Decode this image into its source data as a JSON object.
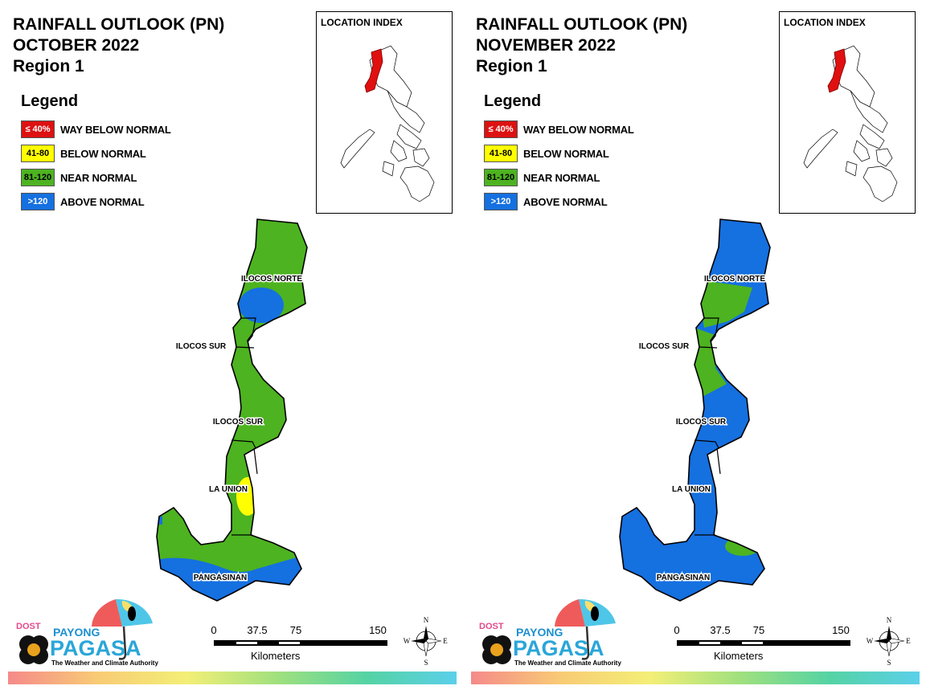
{
  "panels": [
    {
      "title_line1": "RAINFALL OUTLOOK (PN)",
      "title_line2": "OCTOBER 2022",
      "title_line3": "Region 1",
      "legend_title": "Legend",
      "legend": [
        {
          "swatch": "≤ 40%",
          "label": "WAY BELOW NORMAL",
          "color": "#dd1111",
          "text_color": "#ffffff"
        },
        {
          "swatch": "41-80",
          "label": "BELOW NORMAL",
          "color": "#ffff00",
          "text_color": "#000000"
        },
        {
          "swatch": "81-120",
          "label": "NEAR NORMAL",
          "color": "#4db320",
          "text_color": "#000000"
        },
        {
          "swatch": ">120",
          "label": "ABOVE NORMAL",
          "color": "#1570e0",
          "text_color": "#ffffff"
        }
      ],
      "location_index_title": "LOCATION INDEX",
      "map_labels": [
        "ILOCOS NORTE",
        "ILOCOS SUR",
        "ILOCOS SUR",
        "LA UNION",
        "PANGASINAN"
      ],
      "dominant_category": "NEAR NORMAL",
      "scale": {
        "ticks": [
          "0",
          "37.5",
          "75",
          "150"
        ],
        "unit": "Kilometers"
      },
      "compass": {
        "n": "N",
        "s": "S",
        "e": "E",
        "w": "W"
      },
      "logo": {
        "dost": "DOST",
        "payong": "PAYONG",
        "pagasa": "PAGASA",
        "tagline": "The Weather and Climate Authority"
      }
    },
    {
      "title_line1": "RAINFALL OUTLOOK (PN)",
      "title_line2": "NOVEMBER 2022",
      "title_line3": "Region 1",
      "legend_title": "Legend",
      "legend": [
        {
          "swatch": "≤ 40%",
          "label": "WAY BELOW NORMAL",
          "color": "#dd1111",
          "text_color": "#ffffff"
        },
        {
          "swatch": "41-80",
          "label": "BELOW NORMAL",
          "color": "#ffff00",
          "text_color": "#000000"
        },
        {
          "swatch": "81-120",
          "label": "NEAR NORMAL",
          "color": "#4db320",
          "text_color": "#000000"
        },
        {
          "swatch": ">120",
          "label": "ABOVE NORMAL",
          "color": "#1570e0",
          "text_color": "#ffffff"
        }
      ],
      "location_index_title": "LOCATION INDEX",
      "map_labels": [
        "ILOCOS NORTE",
        "ILOCOS SUR",
        "ILOCOS SUR",
        "LA UNION",
        "PANGASINAN"
      ],
      "dominant_category": "ABOVE NORMAL",
      "scale": {
        "ticks": [
          "0",
          "37.5",
          "75",
          "150"
        ],
        "unit": "Kilometers"
      },
      "compass": {
        "n": "N",
        "s": "S",
        "e": "E",
        "w": "W"
      },
      "logo": {
        "dost": "DOST",
        "payong": "PAYONG",
        "pagasa": "PAGASA",
        "tagline": "The Weather and Climate Authority"
      }
    }
  ]
}
